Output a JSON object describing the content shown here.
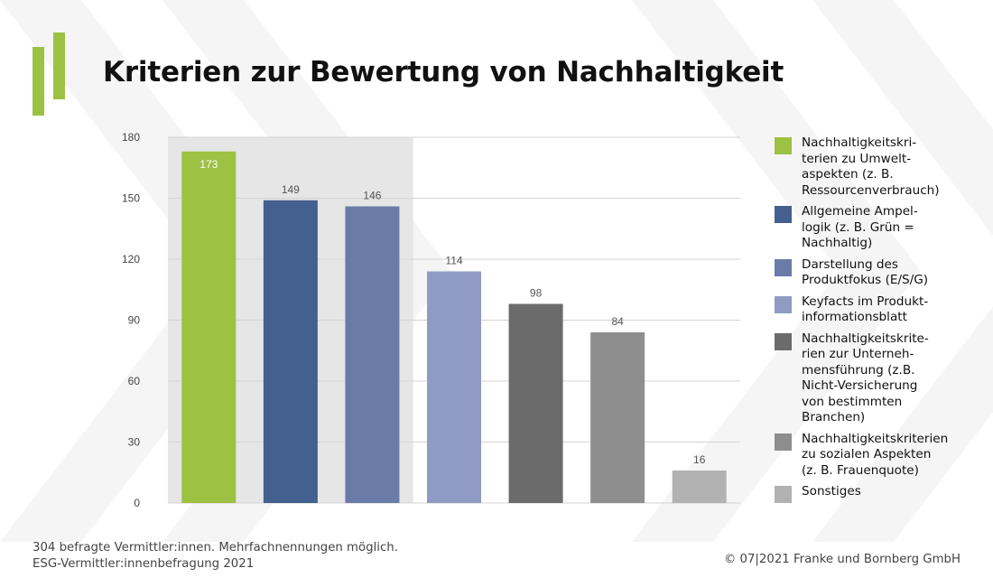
{
  "header": {
    "title": "Kriterien zur Bewertung von Nachhaltigkeit"
  },
  "colors": {
    "accent": "#9dc143",
    "highlight_band": "#e6e6e6"
  },
  "chart_data": {
    "type": "bar",
    "title": "Kriterien zur Bewertung von Nachhaltigkeit",
    "ylim": [
      0,
      180
    ],
    "yticks": [
      0,
      30,
      60,
      90,
      120,
      150,
      180
    ],
    "ytick_labels": [
      "0",
      "30",
      "60",
      "90",
      "120",
      "150",
      "180"
    ],
    "grid": true,
    "legend_position": "right",
    "categories": [
      "Nachhaltigkeitskri-\nterien zu Umwelt-\naspekten (z. B.\nRessourcenverbrauch)",
      "Allgemeine Ampel-\nlogik (z. B. Grün =\nNachhaltig)",
      "Darstellung des\nProduktfokus (E/S/G)",
      "Keyfacts im Produkt-\ninformationsblatt",
      "Nachhaltigkeitskrite-\nrien zur Unterneh-\nmensführung (z.B.\nNicht-Versicherung\nvon bestimmten\nBranchen)",
      "Nachhaltigkeitskriterien\nzu sozialen Aspekten\n(z. B. Frauenquote)",
      "Sonstiges"
    ],
    "values": [
      173,
      149,
      146,
      114,
      98,
      84,
      16
    ],
    "value_labels": [
      "173",
      "149",
      "146",
      "114",
      "98",
      "84",
      "16"
    ],
    "colors": [
      "#9dc143",
      "#43608f",
      "#6b7ba8",
      "#8f9bc2",
      "#6b6b6b",
      "#8e8e8e",
      "#b2b2b2"
    ],
    "highlighted_categories": [
      0,
      1,
      2
    ]
  },
  "footer": {
    "note_line1": "304 befragte Vermittler:innen. Mehrfachnennungen möglich.",
    "note_line2": "ESG-Vermittler:innenbefragung 2021",
    "copyright": "© 07|2021 Franke und Bornberg GmbH"
  }
}
